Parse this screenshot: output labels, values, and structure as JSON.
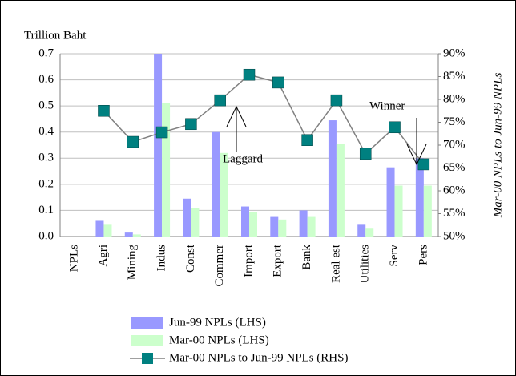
{
  "chart_data": {
    "type": "bar",
    "y_title": "Trillion Baht",
    "y2_title": "Mar-00 NPLs to Jun-99 NPLs",
    "categories": [
      "NPLs",
      "Agri",
      "Mining",
      "Indus",
      "Const",
      "Commer",
      "Import",
      "Export",
      "Bank",
      "Real est",
      "Utilities",
      "Serv",
      "Pers"
    ],
    "series": [
      {
        "name": "Jun-99 NPLs (LHS)",
        "color": "#9999ff",
        "values": [
          null,
          0.06,
          0.015,
          0.7,
          0.145,
          0.4,
          0.115,
          0.075,
          0.1,
          0.445,
          0.045,
          0.265,
          0.3
        ]
      },
      {
        "name": "Mar-00 NPLs (LHS)",
        "color": "#ccffcc",
        "values": [
          null,
          0.045,
          0.008,
          0.51,
          0.11,
          0.32,
          0.095,
          0.065,
          0.075,
          0.355,
          0.03,
          0.195,
          0.195
        ]
      },
      {
        "name": "Mar-00 NPLs to Jun-99 NPLs (RHS)",
        "color": "#808080",
        "marker_color": "#008080",
        "type": "line",
        "axis": "y2",
        "values": [
          null,
          77.5,
          70.7,
          72.8,
          74.6,
          79.8,
          85.4,
          83.7,
          71.1,
          79.8,
          68.1,
          73.9,
          65.8
        ]
      }
    ],
    "ylim": [
      0,
      0.7
    ],
    "yticks": [
      {
        "value": 0,
        "label": "0.0"
      },
      0.1,
      0.2,
      0.3,
      0.4,
      0.5,
      0.6,
      0.7
    ],
    "y2lim": [
      50,
      90
    ],
    "y2ticks": [
      {
        "value": 50,
        "label": "50%"
      },
      {
        "value": 55,
        "label": "55%"
      },
      {
        "value": 60,
        "label": "60%"
      },
      {
        "value": 65,
        "label": "65%"
      },
      {
        "value": 70,
        "label": "70%"
      },
      {
        "value": 75,
        "label": "75%"
      },
      {
        "value": 80,
        "label": "80%"
      },
      {
        "value": 85,
        "label": "85%"
      },
      {
        "value": 90,
        "label": "90%"
      }
    ],
    "grid": true,
    "annotations": [
      {
        "text": "Laggard"
      },
      {
        "text": "Winner"
      }
    ]
  }
}
